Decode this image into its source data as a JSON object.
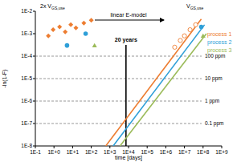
{
  "chart_data": {
    "type": "scatter",
    "log": true,
    "grid": false,
    "legend": "top-right",
    "x_label": "time [days]",
    "y_label": "-ln(1-F)",
    "xlim": [
      0.1,
      1000000000
    ],
    "ylim": [
      1e-08,
      0.01
    ],
    "xticks": [
      {
        "value": 0.1,
        "label": "1E-1"
      },
      {
        "value": 1,
        "label": "1E+0"
      },
      {
        "value": 10,
        "label": "1E+1"
      },
      {
        "value": 100,
        "label": "1E+2"
      },
      {
        "value": 1000,
        "label": "1E+3"
      },
      {
        "value": 10000,
        "label": "1E+4"
      },
      {
        "value": 100000,
        "label": "1E+5"
      },
      {
        "value": 1000000,
        "label": "1E+6"
      },
      {
        "value": 10000000,
        "label": "1E+7"
      },
      {
        "value": 100000000,
        "label": "1E+8"
      },
      {
        "value": 1000000000,
        "label": "1E+9"
      }
    ],
    "yticks": [
      {
        "value": 1e-08,
        "label": "1E-8"
      },
      {
        "value": 1e-07,
        "label": "1E-7"
      },
      {
        "value": 1e-06,
        "label": "1E-6"
      },
      {
        "value": 1e-05,
        "label": "1E-5"
      },
      {
        "value": 0.0001,
        "label": "1E-4"
      },
      {
        "value": 0.001,
        "label": "1E-3"
      },
      {
        "value": 0.01,
        "label": "1E-2"
      }
    ],
    "reference_lines": [
      {
        "value": 0.0001,
        "label": "100 ppm"
      },
      {
        "value": 1e-05,
        "label": "10 ppm"
      },
      {
        "value": 1e-06,
        "label": "1 ppm"
      },
      {
        "value": 1e-07,
        "label": "0.1 ppm"
      }
    ],
    "vertical_lines": [
      {
        "value": 7300,
        "label": "20 years"
      }
    ],
    "annotations": [
      {
        "text": "2x V",
        "sub": "GS,use"
      },
      {
        "text": "linear E-model"
      },
      {
        "text": "V",
        "sub": "GS,use"
      }
    ],
    "series": [
      {
        "name": "process 1",
        "type": "line",
        "color": "#ed7d31",
        "x": [
          600,
          80000000
        ],
        "values": [
          1e-08,
          0.0045
        ]
      },
      {
        "name": "process 2",
        "type": "line",
        "color": "#2e9fd8",
        "x": [
          1500,
          120000000
        ],
        "values": [
          1e-08,
          0.0025
        ]
      },
      {
        "name": "process 3",
        "type": "line",
        "color": "#9bbb59",
        "x": [
          3500,
          150000000
        ],
        "values": [
          1e-08,
          0.001
        ]
      },
      {
        "type": "scatter",
        "marker": "diamond",
        "color": "#ed7d31",
        "x": [
          0.5,
          0.9,
          2,
          4,
          8,
          15,
          40,
          100
        ],
        "values": [
          0.0008,
          0.0015,
          0.002,
          0.0012,
          0.0025,
          0.0018,
          0.003,
          0.004
        ]
      },
      {
        "type": "scatter",
        "marker": "circle",
        "color": "#2e9fd8",
        "x": [
          5,
          50
        ],
        "values": [
          0.0003,
          0.001
        ]
      },
      {
        "type": "scatter",
        "marker": "triangle",
        "color": "#9bbb59",
        "x": [
          150
        ],
        "values": [
          0.0003
        ]
      },
      {
        "type": "scatter",
        "marker": "open-circle",
        "color": "#ed7d31",
        "x": [
          3000000,
          6000000,
          10000000,
          20000000,
          40000000
        ],
        "values": [
          0.00025,
          0.0005,
          0.0008,
          0.0015,
          0.0025
        ]
      },
      {
        "type": "scatter",
        "marker": "circle",
        "color": "#2e9fd8",
        "x": [
          80000000
        ],
        "values": [
          0.002
        ]
      },
      {
        "type": "scatter",
        "marker": "triangle",
        "color": "#9bbb59",
        "x": [
          100000000
        ],
        "values": [
          0.0008
        ]
      }
    ]
  }
}
